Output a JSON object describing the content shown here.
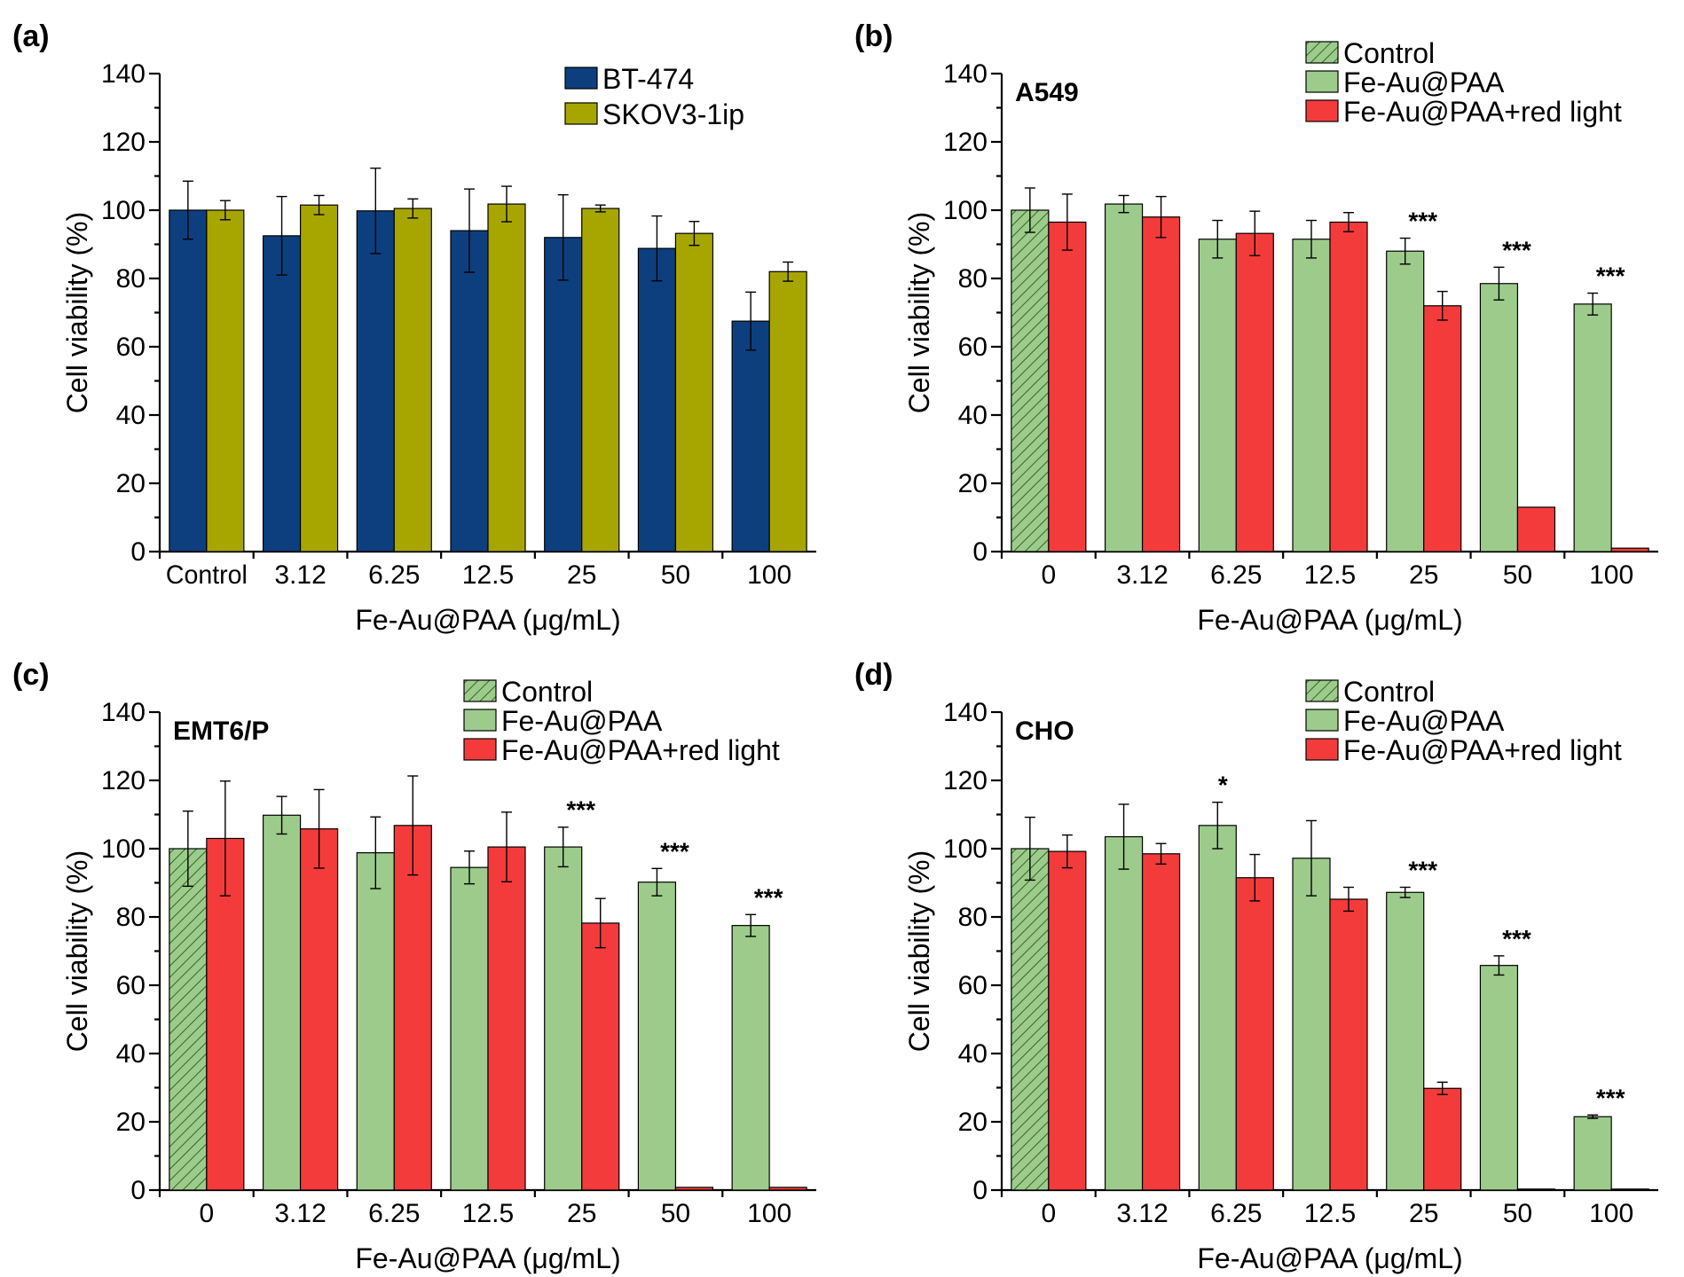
{
  "chart_data": [
    {
      "type": "bar",
      "panel_label": "(a)",
      "cell_line": "",
      "categories": [
        "Control",
        "3.12",
        "6.25",
        "12.5",
        "25",
        "50",
        "100"
      ],
      "xlabel": "Fe-Au@PAA (μg/mL)",
      "ylabel": "Cell viability (%)",
      "ylim": [
        0,
        140
      ],
      "yticks": [
        0,
        20,
        40,
        60,
        80,
        100,
        120,
        140
      ],
      "legend_position": "top-right",
      "series": [
        {
          "name": "BT-474",
          "color": "#0d3f7f",
          "pattern": "solid",
          "values": [
            100,
            92.5,
            99.8,
            94,
            92,
            88.8,
            67.5
          ],
          "errors": [
            8.5,
            11.5,
            12.5,
            12.2,
            12.5,
            9.5,
            8.5
          ],
          "sig": [
            "",
            "",
            "",
            "",
            "",
            "",
            ""
          ]
        },
        {
          "name": "SKOV3-1ip",
          "color": "#a7a600",
          "pattern": "solid",
          "values": [
            100,
            101.5,
            100.5,
            101.8,
            100.5,
            93.2,
            82
          ],
          "errors": [
            2.8,
            2.8,
            2.8,
            5.2,
            1.0,
            3.5,
            2.8
          ],
          "sig": [
            "",
            "",
            "",
            "",
            "",
            "",
            ""
          ]
        }
      ]
    },
    {
      "type": "bar",
      "panel_label": "(b)",
      "cell_line": "A549",
      "categories": [
        "0",
        "3.12",
        "6.25",
        "12.5",
        "25",
        "50",
        "100"
      ],
      "xlabel": "Fe-Au@PAA (μg/mL)",
      "ylabel": "Cell viability (%)",
      "ylim": [
        0,
        140
      ],
      "yticks": [
        0,
        20,
        40,
        60,
        80,
        100,
        120,
        140
      ],
      "legend_position": "top-right",
      "legend": [
        {
          "name": "Control",
          "color": "#9dcb8c",
          "pattern": "hatch"
        },
        {
          "name": "Fe-Au@PAA",
          "color": "#9dcb8c",
          "pattern": "solid"
        },
        {
          "name": "Fe-Au@PAA+red light",
          "color": "#f43b3b",
          "pattern": "solid"
        }
      ],
      "series": [
        {
          "name": "Fe-Au@PAA",
          "color": "#9dcb8c",
          "patterns": [
            "hatch",
            "solid",
            "solid",
            "solid",
            "solid",
            "solid",
            "solid"
          ],
          "values": [
            100,
            101.8,
            91.5,
            91.5,
            88,
            78.5,
            72.5
          ],
          "errors": [
            6.5,
            2.5,
            5.5,
            5.5,
            3.8,
            4.8,
            3.2
          ],
          "sig": [
            "",
            "",
            "",
            "",
            "***",
            "***",
            "***"
          ]
        },
        {
          "name": "Fe-Au@PAA+red light",
          "color": "#f43b3b",
          "patterns": [
            "solid",
            "solid",
            "solid",
            "solid",
            "solid",
            "solid",
            "solid"
          ],
          "values": [
            96.5,
            98,
            93.2,
            96.5,
            72,
            13,
            1
          ],
          "errors": [
            8.2,
            6,
            6.5,
            2.8,
            4.2,
            0,
            0
          ],
          "sig": [
            "",
            "",
            "",
            "",
            "",
            "",
            ""
          ]
        }
      ]
    },
    {
      "type": "bar",
      "panel_label": "(c)",
      "cell_line": "EMT6/P",
      "categories": [
        "0",
        "3.12",
        "6.25",
        "12.5",
        "25",
        "50",
        "100"
      ],
      "xlabel": "Fe-Au@PAA (μg/mL)",
      "ylabel": "Cell viability (%)",
      "ylim": [
        0,
        140
      ],
      "yticks": [
        0,
        20,
        40,
        60,
        80,
        100,
        120,
        140
      ],
      "legend_position": "top-right",
      "legend": [
        {
          "name": "Control",
          "color": "#9dcb8c",
          "pattern": "hatch"
        },
        {
          "name": "Fe-Au@PAA",
          "color": "#9dcb8c",
          "pattern": "solid"
        },
        {
          "name": "Fe-Au@PAA+red light",
          "color": "#f43b3b",
          "pattern": "solid"
        }
      ],
      "series": [
        {
          "name": "Fe-Au@PAA",
          "color": "#9dcb8c",
          "patterns": [
            "hatch",
            "solid",
            "solid",
            "solid",
            "solid",
            "solid",
            "solid"
          ],
          "values": [
            100,
            109.8,
            98.8,
            94.5,
            100.5,
            90.2,
            77.5
          ],
          "errors": [
            11,
            5.5,
            10.5,
            4.8,
            5.8,
            4,
            3.2
          ],
          "sig": [
            "",
            "",
            "",
            "",
            "***",
            "***",
            "***"
          ]
        },
        {
          "name": "Fe-Au@PAA+red light",
          "color": "#f43b3b",
          "patterns": [
            "solid",
            "solid",
            "solid",
            "solid",
            "solid",
            "solid",
            "solid"
          ],
          "values": [
            103,
            105.8,
            106.8,
            100.5,
            78.2,
            0.8,
            0.8
          ],
          "errors": [
            16.8,
            11.5,
            14.5,
            10.2,
            7.2,
            0,
            0
          ],
          "sig": [
            "",
            "",
            "",
            "",
            "",
            "",
            ""
          ]
        }
      ]
    },
    {
      "type": "bar",
      "panel_label": "(d)",
      "cell_line": "CHO",
      "categories": [
        "0",
        "3.12",
        "6.25",
        "12.5",
        "25",
        "50",
        "100"
      ],
      "xlabel": "Fe-Au@PAA (μg/mL)",
      "ylabel": "Cell viability (%)",
      "ylim": [
        0,
        140
      ],
      "yticks": [
        0,
        20,
        40,
        60,
        80,
        100,
        120,
        140
      ],
      "legend_position": "top-right",
      "legend": [
        {
          "name": "Control",
          "color": "#9dcb8c",
          "pattern": "hatch"
        },
        {
          "name": "Fe-Au@PAA",
          "color": "#9dcb8c",
          "pattern": "solid"
        },
        {
          "name": "Fe-Au@PAA+red light",
          "color": "#f43b3b",
          "pattern": "solid"
        }
      ],
      "series": [
        {
          "name": "Fe-Au@PAA",
          "color": "#9dcb8c",
          "patterns": [
            "hatch",
            "solid",
            "solid",
            "solid",
            "solid",
            "solid",
            "solid"
          ],
          "values": [
            100,
            103.5,
            106.8,
            97.2,
            87.2,
            65.8,
            21.5
          ],
          "errors": [
            9.2,
            9.5,
            6.8,
            11,
            1.5,
            2.8,
            0.5
          ],
          "sig": [
            "",
            "",
            "*",
            "",
            "***",
            "***",
            "***"
          ]
        },
        {
          "name": "Fe-Au@PAA+red light",
          "color": "#f43b3b",
          "patterns": [
            "solid",
            "solid",
            "solid",
            "solid",
            "solid",
            "solid",
            "solid"
          ],
          "values": [
            99.2,
            98.5,
            91.5,
            85.2,
            29.8,
            0.3,
            0.3
          ],
          "errors": [
            4.8,
            3,
            6.8,
            3.5,
            1.8,
            0,
            0
          ],
          "sig": [
            "",
            "",
            "",
            "",
            "",
            "",
            ""
          ]
        }
      ]
    }
  ]
}
